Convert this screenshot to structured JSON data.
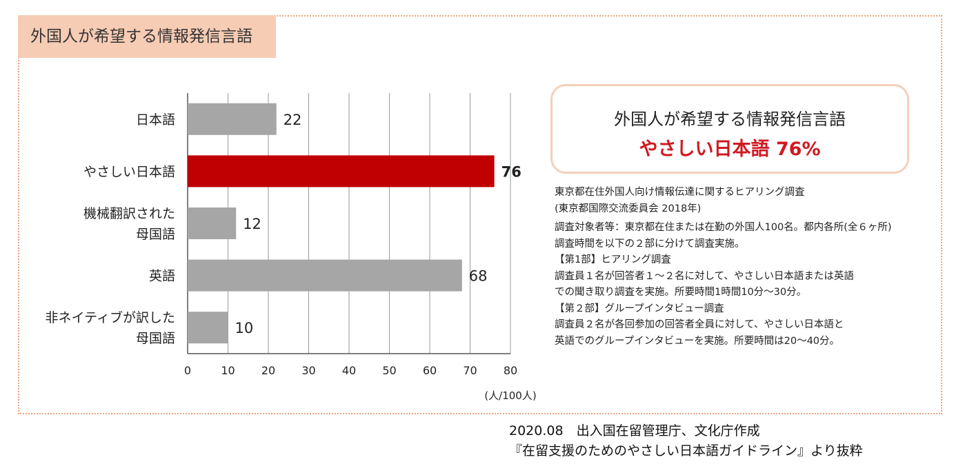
{
  "panel_title": "外国人が希望する情報発信言語",
  "callout": {
    "line1": "外国人が希望する情報発信言語",
    "line2": "やさしい日本語 76%"
  },
  "notes": [
    "東京都在住外国人向け情報伝達に関するヒアリング調査",
    "(東京都国際交流委員会 2018年)",
    "調査対象者等：東京都在住または在勤の外国人100名。都内各所(全６ヶ所)",
    "調査時間を以下の２部に分けて調査実施。",
    "【第1部】ヒアリング調査",
    "調査員１名が回答者１～２名に対して、やさしい日本語または英語",
    "での聞き取り調査を実施。所要時間1時間10分～30分。",
    "【第２部】グループインタビュー調査",
    "調査員２名が各回参加の回答者全員に対して、やさしい日本語と",
    "英語でのグループインタビューを実施。所要時間は20～40分。"
  ],
  "footer": {
    "line1": "2020.08　出入国在留管理庁、文化庁作成",
    "line2": "『在留支援のためのやさしい日本語ガイドライン』より抜粋"
  },
  "colors": {
    "bar_default": "#a6a6a6",
    "bar_highlight": "#c00000",
    "accent_text": "#d11920",
    "frame": "#e9a27a",
    "title_bg": "#f7ccb4"
  },
  "chart_data": {
    "type": "bar",
    "orientation": "horizontal",
    "categories": [
      [
        "日本語"
      ],
      [
        "やさしい日本語"
      ],
      [
        "機械翻訳された",
        "母国語"
      ],
      [
        "英語"
      ],
      [
        "非ネイティブが訳した",
        "母国語"
      ]
    ],
    "values": [
      22,
      76,
      12,
      68,
      10
    ],
    "highlight_index": 1,
    "xlim": [
      0,
      80
    ],
    "xticks": [
      0,
      10,
      20,
      30,
      40,
      50,
      60,
      70,
      80
    ],
    "unit_label": "(人/100人)",
    "grid": true
  }
}
